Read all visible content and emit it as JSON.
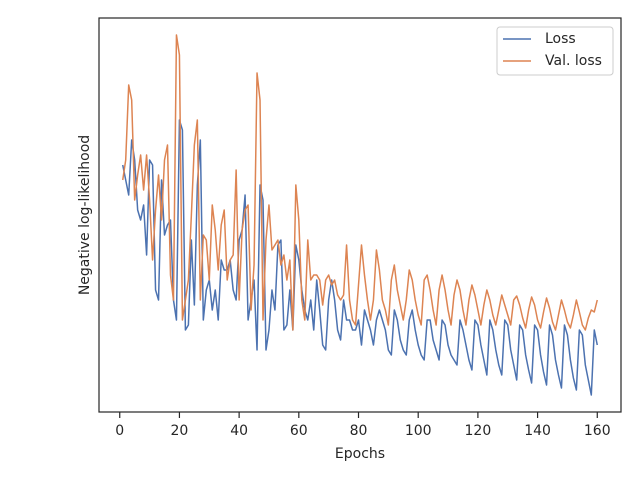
{
  "chart_data": {
    "type": "line",
    "xlabel": "Epochs",
    "ylabel": "Negative log-likelihood",
    "x": [
      1,
      2,
      3,
      4,
      5,
      6,
      7,
      8,
      9,
      10,
      11,
      12,
      13,
      14,
      15,
      16,
      17,
      18,
      19,
      20,
      21,
      22,
      23,
      24,
      25,
      26,
      27,
      28,
      29,
      30,
      31,
      32,
      33,
      34,
      35,
      36,
      37,
      38,
      39,
      40,
      41,
      42,
      43,
      44,
      45,
      46,
      47,
      48,
      49,
      50,
      51,
      52,
      53,
      54,
      55,
      56,
      57,
      58,
      59,
      60,
      61,
      62,
      63,
      64,
      65,
      66,
      67,
      68,
      69,
      70,
      71,
      72,
      73,
      74,
      75,
      76,
      77,
      78,
      79,
      80,
      81,
      82,
      83,
      84,
      85,
      86,
      87,
      88,
      89,
      90,
      91,
      92,
      93,
      94,
      95,
      96,
      97,
      98,
      99,
      100,
      101,
      102,
      103,
      104,
      105,
      106,
      107,
      108,
      109,
      110,
      111,
      112,
      113,
      114,
      115,
      116,
      117,
      118,
      119,
      120,
      121,
      122,
      123,
      124,
      125,
      126,
      127,
      128,
      129,
      130,
      131,
      132,
      133,
      134,
      135,
      136,
      137,
      138,
      139,
      140,
      141,
      142,
      143,
      144,
      145,
      146,
      147,
      148,
      149,
      150,
      151,
      152,
      153,
      154,
      155,
      156,
      157,
      158,
      159,
      160
    ],
    "series": [
      {
        "name": "Loss",
        "color": "#4c72b0",
        "values": [
          247,
          232,
          217,
          272,
          252,
          202,
          192,
          207,
          157,
          252,
          247,
          122,
          112,
          232,
          177,
          187,
          192,
          112,
          92,
          292,
          282,
          82,
          87,
          172,
          107,
          227,
          272,
          92,
          122,
          132,
          102,
          122,
          92,
          152,
          142,
          142,
          152,
          122,
          112,
          172,
          182,
          217,
          92,
          112,
          132,
          62,
          227,
          212,
          62,
          82,
          122,
          102,
          167,
          172,
          82,
          87,
          122,
          82,
          167,
          152,
          122,
          102,
          92,
          112,
          82,
          132,
          102,
          67,
          62,
          112,
          132,
          112,
          82,
          72,
          112,
          92,
          92,
          82,
          82,
          92,
          67,
          102,
          92,
          82,
          67,
          92,
          102,
          92,
          82,
          62,
          57,
          102,
          92,
          72,
          62,
          57,
          92,
          102,
          82,
          67,
          57,
          52,
          92,
          92,
          72,
          62,
          52,
          92,
          87,
          67,
          57,
          52,
          47,
          92,
          82,
          67,
          52,
          42,
          92,
          87,
          67,
          52,
          37,
          92,
          82,
          62,
          47,
          37,
          92,
          87,
          62,
          47,
          32,
          87,
          82,
          57,
          42,
          29,
          87,
          82,
          57,
          40,
          27,
          87,
          77,
          52,
          37,
          24,
          87,
          77,
          52,
          34,
          22,
          82,
          77,
          47,
          32,
          17,
          82,
          67
        ]
      },
      {
        "name": "Val. loss",
        "color": "#dd8452",
        "values": [
          232,
          252,
          327,
          312,
          212,
          237,
          257,
          222,
          257,
          212,
          152,
          202,
          237,
          192,
          252,
          267,
          137,
          112,
          377,
          357,
          92,
          112,
          132,
          197,
          267,
          292,
          112,
          177,
          172,
          132,
          207,
          182,
          142,
          187,
          202,
          132,
          152,
          157,
          242,
          112,
          182,
          202,
          207,
          102,
          147,
          339,
          312,
          92,
          172,
          207,
          162,
          167,
          172,
          147,
          157,
          132,
          152,
          82,
          227,
          192,
          112,
          92,
          172,
          132,
          137,
          137,
          132,
          107,
          132,
          137,
          127,
          132,
          117,
          112,
          117,
          167,
          112,
          92,
          87,
          127,
          167,
          137,
          112,
          92,
          112,
          162,
          142,
          112,
          102,
          87,
          132,
          147,
          122,
          107,
          92,
          112,
          142,
          132,
          112,
          97,
          87,
          132,
          137,
          122,
          102,
          87,
          122,
          137,
          122,
          102,
          87,
          117,
          132,
          122,
          102,
          87,
          112,
          127,
          117,
          102,
          87,
          107,
          122,
          112,
          97,
          87,
          102,
          117,
          107,
          97,
          87,
          112,
          116,
          107,
          94,
          84,
          102,
          115,
          107,
          92,
          84,
          100,
          114,
          104,
          90,
          82,
          97,
          112,
          102,
          90,
          84,
          97,
          112,
          100,
          87,
          82,
          94,
          102,
          100,
          112
        ]
      }
    ],
    "xlim": [
      -6.95,
      167.95
    ],
    "xticks": [
      0,
      20,
      40,
      60,
      80,
      100,
      120,
      140,
      160
    ],
    "ylim": [
      0,
      394
    ],
    "legend": "upper right"
  }
}
